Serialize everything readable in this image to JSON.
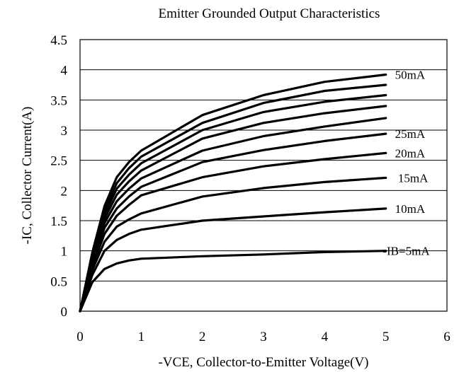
{
  "chart_data": {
    "type": "line",
    "title": "Emitter Grounded Output Characteristics",
    "xlabel": "-VCE, Collector-to-Emitter Voltage(V)",
    "ylabel": "-IC, Collector Current(A)",
    "xlim": [
      0,
      6
    ],
    "ylim": [
      0,
      4.5
    ],
    "xticks": [
      "0",
      "1",
      "2",
      "3",
      "4",
      "5",
      "6"
    ],
    "yticks": [
      "0",
      "0.5",
      "1",
      "1.5",
      "2",
      "2.5",
      "3",
      "3.5",
      "4",
      "4.5"
    ],
    "grid": "horizontal",
    "x": [
      0,
      0.2,
      0.4,
      0.6,
      0.8,
      1,
      2,
      3,
      4,
      5
    ],
    "series": [
      {
        "name": "-IB=5mA",
        "values": [
          0,
          0.48,
          0.7,
          0.79,
          0.84,
          0.87,
          0.91,
          0.94,
          0.98,
          1.0
        ]
      },
      {
        "name": "10mA",
        "values": [
          0,
          0.6,
          1.0,
          1.18,
          1.28,
          1.35,
          1.5,
          1.57,
          1.64,
          1.7
        ]
      },
      {
        "name": "15mA",
        "values": [
          0,
          0.68,
          1.15,
          1.4,
          1.52,
          1.62,
          1.9,
          2.04,
          2.14,
          2.21
        ]
      },
      {
        "values": [
          0,
          0.74,
          1.28,
          1.58,
          1.76,
          1.92,
          2.22,
          2.4,
          2.52,
          2.62
        ]
      },
      {
        "values": [
          0,
          0.78,
          1.38,
          1.7,
          1.9,
          2.06,
          2.47,
          2.67,
          2.82,
          2.94
        ]
      },
      {
        "values": [
          0,
          0.82,
          1.46,
          1.82,
          2.03,
          2.2,
          2.66,
          2.9,
          3.06,
          3.2
        ]
      },
      {
        "values": [
          0,
          0.86,
          1.53,
          1.93,
          2.15,
          2.33,
          2.86,
          3.12,
          3.28,
          3.4
        ]
      },
      {
        "values": [
          0,
          0.9,
          1.6,
          2.03,
          2.26,
          2.45,
          3.0,
          3.3,
          3.47,
          3.58
        ]
      },
      {
        "values": [
          0,
          0.93,
          1.67,
          2.12,
          2.37,
          2.56,
          3.12,
          3.45,
          3.65,
          3.75
        ]
      },
      {
        "values": [
          0,
          0.97,
          1.74,
          2.22,
          2.47,
          2.66,
          3.25,
          3.58,
          3.8,
          3.92
        ]
      }
    ],
    "annotations": [
      {
        "text": "50mA",
        "x": 5.15,
        "y": 3.92
      },
      {
        "text": "25mA",
        "x": 5.15,
        "y": 2.94
      },
      {
        "text": "20mA",
        "x": 5.15,
        "y": 2.62
      },
      {
        "text": "15mA",
        "x": 5.2,
        "y": 2.21
      },
      {
        "text": "10mA",
        "x": 5.15,
        "y": 1.7
      },
      {
        "text": "-IB=5mA",
        "x": 4.95,
        "y": 1.0
      }
    ]
  }
}
